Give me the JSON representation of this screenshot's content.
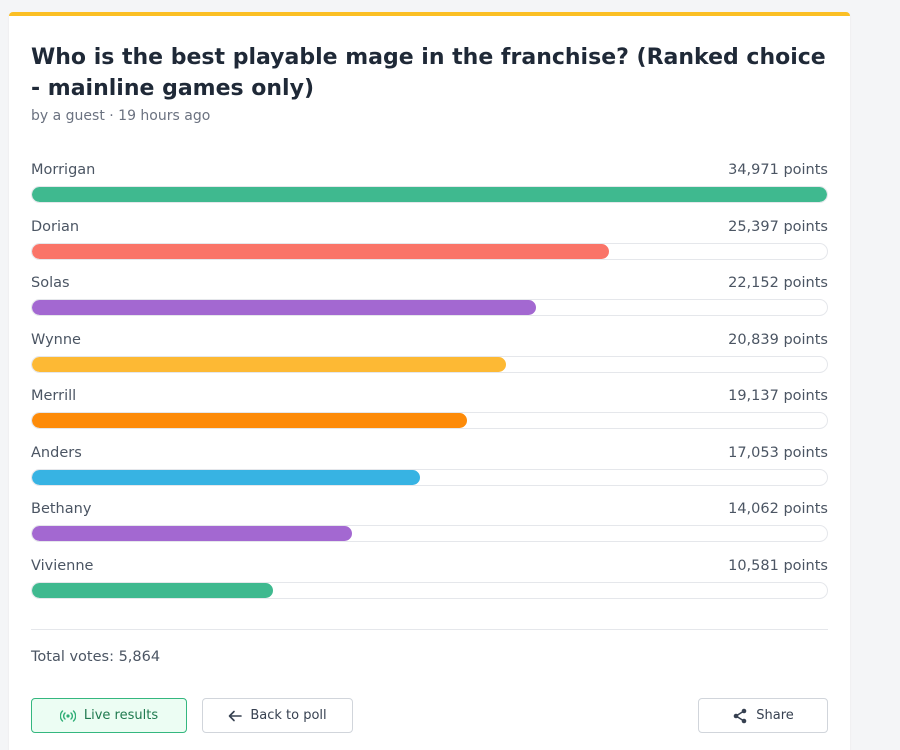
{
  "poll": {
    "title": "Who is the best playable mage in the franchise? (Ranked choice - mainline games only)",
    "meta": "by a guest · 19 hours ago",
    "points_suffix": "points",
    "total_votes": "Total votes: 5,864"
  },
  "results": [
    {
      "name": "Morrigan",
      "points": 34971,
      "points_label": "34,971 points",
      "color": "#3fb98f"
    },
    {
      "name": "Dorian",
      "points": 25397,
      "points_label": "25,397 points",
      "color": "#fa7468"
    },
    {
      "name": "Solas",
      "points": 22152,
      "points_label": "22,152 points",
      "color": "#a368d1"
    },
    {
      "name": "Wynne",
      "points": 20839,
      "points_label": "20,839 points",
      "color": "#fdb934"
    },
    {
      "name": "Merrill",
      "points": 19137,
      "points_label": "19,137 points",
      "color": "#fd8b09"
    },
    {
      "name": "Anders",
      "points": 17053,
      "points_label": "17,053 points",
      "color": "#37b3e3"
    },
    {
      "name": "Bethany",
      "points": 14062,
      "points_label": "14,062 points",
      "color": "#a368d1"
    },
    {
      "name": "Vivienne",
      "points": 10581,
      "points_label": "10,581 points",
      "color": "#3fb98f"
    }
  ],
  "buttons": {
    "live_results": "Live results",
    "back_to_poll": "Back to poll",
    "share": "Share"
  },
  "icons": {
    "live": "broadcast-icon",
    "back": "arrow-left-icon",
    "share": "share-icon"
  },
  "colors": {
    "accent_top": "#fbbf24",
    "live_green": "#34b77f"
  }
}
